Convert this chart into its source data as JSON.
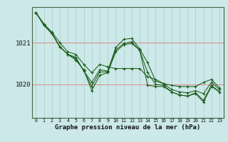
{
  "background_color": "#cce8e8",
  "line_color": "#1a5c1a",
  "xlabel": "Graphe pression niveau de la mer (hPa)",
  "xlim": [
    -0.5,
    23.5
  ],
  "ylim": [
    1019.2,
    1021.85
  ],
  "yticks": [
    1020,
    1021
  ],
  "xticks": [
    0,
    1,
    2,
    3,
    4,
    5,
    6,
    7,
    8,
    9,
    10,
    11,
    12,
    13,
    14,
    15,
    16,
    17,
    18,
    19,
    20,
    21,
    22,
    23
  ],
  "series": [
    [
      1021.72,
      1021.45,
      1021.25,
      1021.0,
      1020.78,
      1020.72,
      1020.48,
      1020.28,
      1020.48,
      1020.42,
      1020.38,
      1020.38,
      1020.38,
      1020.38,
      1020.18,
      1020.12,
      1020.02,
      1019.98,
      1019.95,
      1019.95,
      1019.95,
      1020.05,
      1020.12,
      1019.92
    ],
    [
      1021.72,
      1021.42,
      1021.22,
      1020.9,
      1020.72,
      1020.65,
      1020.32,
      1020.05,
      1020.35,
      1020.32,
      1020.88,
      1021.08,
      1021.1,
      1020.85,
      1020.52,
      1020.08,
      1020.02,
      1019.88,
      1019.82,
      1019.8,
      1019.85,
      1019.78,
      1020.05,
      1019.88
    ],
    [
      1021.72,
      1021.42,
      1021.22,
      1020.9,
      1020.72,
      1020.58,
      1020.35,
      1019.85,
      1020.22,
      1020.28,
      1020.78,
      1020.95,
      1020.98,
      1020.82,
      1019.98,
      1019.95,
      1019.95,
      1019.82,
      1019.75,
      1019.72,
      1019.78,
      1019.58,
      1019.95,
      1019.82
    ],
    [
      1021.72,
      1021.42,
      1021.22,
      1020.9,
      1020.72,
      1020.62,
      1020.33,
      1019.95,
      1020.3,
      1020.3,
      1020.82,
      1020.98,
      1021.02,
      1020.82,
      1020.28,
      1020.0,
      1019.98,
      1019.82,
      1019.75,
      1019.72,
      1019.8,
      1019.62,
      1019.98,
      1019.82
    ]
  ]
}
